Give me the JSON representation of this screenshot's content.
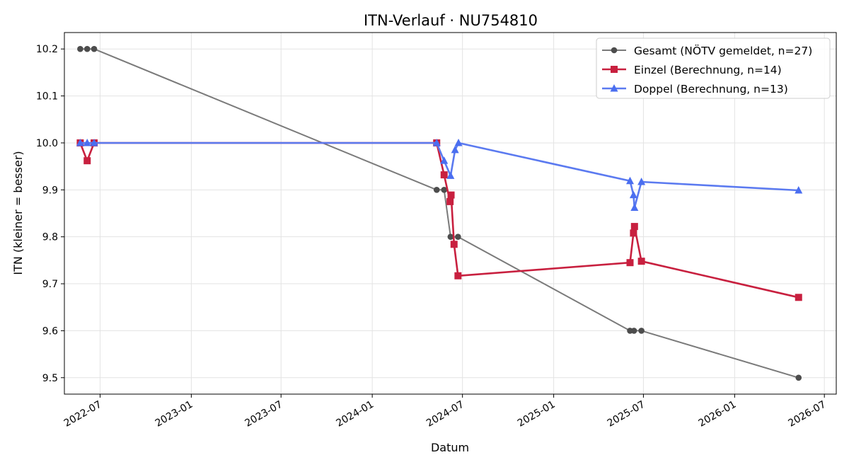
{
  "chart_data": {
    "type": "line",
    "title": "ITN-Verlauf · NU754810",
    "xlabel": "Datum",
    "ylabel": "ITN  (kleiner = besser)",
    "xlim": [
      "2022-04-20",
      "2026-07-25"
    ],
    "ylim": [
      9.465,
      10.235
    ],
    "yticks": [
      9.5,
      9.6,
      9.7,
      9.8,
      9.9,
      10.0,
      10.1,
      10.2
    ],
    "xticks": [
      "2022-07-01",
      "2023-01-01",
      "2023-07-01",
      "2024-01-01",
      "2024-07-01",
      "2025-01-01",
      "2025-07-01",
      "2026-01-01",
      "2026-07-01"
    ],
    "xtick_labels": [
      "2022-07",
      "2023-01",
      "2023-07",
      "2024-01",
      "2024-07",
      "2025-01",
      "2025-07",
      "2026-01",
      "2026-07"
    ],
    "grid": true,
    "legend": "top-right",
    "series": [
      {
        "name": "Gesamt (NÖTV gemeldet, n=27)",
        "color": "#4d4d4d",
        "line_color": "#7a7a7a",
        "marker": "circle",
        "points": [
          [
            "2022-05-22",
            10.2
          ],
          [
            "2022-06-05",
            10.2
          ],
          [
            "2022-06-19",
            10.2
          ],
          [
            "2024-05-10",
            9.9
          ],
          [
            "2024-05-25",
            9.9
          ],
          [
            "2024-06-07",
            9.8
          ],
          [
            "2024-06-22",
            9.8
          ],
          [
            "2025-06-04",
            9.6
          ],
          [
            "2025-06-12",
            9.6
          ],
          [
            "2025-06-27",
            9.6
          ],
          [
            "2026-05-10",
            9.5
          ]
        ]
      },
      {
        "name": "Einzel (Berechnung, n=14)",
        "color": "#c8203f",
        "line_color": "#c8203f",
        "marker": "square",
        "points": [
          [
            "2022-05-22",
            10.0
          ],
          [
            "2022-06-05",
            9.962
          ],
          [
            "2022-06-19",
            10.0
          ],
          [
            "2024-05-10",
            10.0
          ],
          [
            "2024-05-25",
            9.932
          ],
          [
            "2024-06-06",
            9.875
          ],
          [
            "2024-06-08",
            9.889
          ],
          [
            "2024-06-14",
            9.784
          ],
          [
            "2024-06-22",
            9.717
          ],
          [
            "2025-06-04",
            9.745
          ],
          [
            "2025-06-11",
            9.808
          ],
          [
            "2025-06-13",
            9.822
          ],
          [
            "2025-06-27",
            9.748
          ],
          [
            "2026-05-10",
            9.671
          ]
        ]
      },
      {
        "name": "Doppel (Berechnung, n=13)",
        "color": "#4a6ef0",
        "line_color": "#5b7af0",
        "marker": "triangle",
        "points": [
          [
            "2022-05-22",
            10.0
          ],
          [
            "2022-06-05",
            10.0
          ],
          [
            "2022-06-19",
            10.0
          ],
          [
            "2024-05-10",
            10.0
          ],
          [
            "2024-05-25",
            9.962
          ],
          [
            "2024-06-07",
            9.93
          ],
          [
            "2024-06-16",
            9.985
          ],
          [
            "2024-06-23",
            10.0
          ],
          [
            "2025-06-04",
            9.919
          ],
          [
            "2025-06-11",
            9.889
          ],
          [
            "2025-06-13",
            9.862
          ],
          [
            "2025-06-27",
            9.917
          ],
          [
            "2026-05-10",
            9.899
          ]
        ]
      }
    ]
  }
}
